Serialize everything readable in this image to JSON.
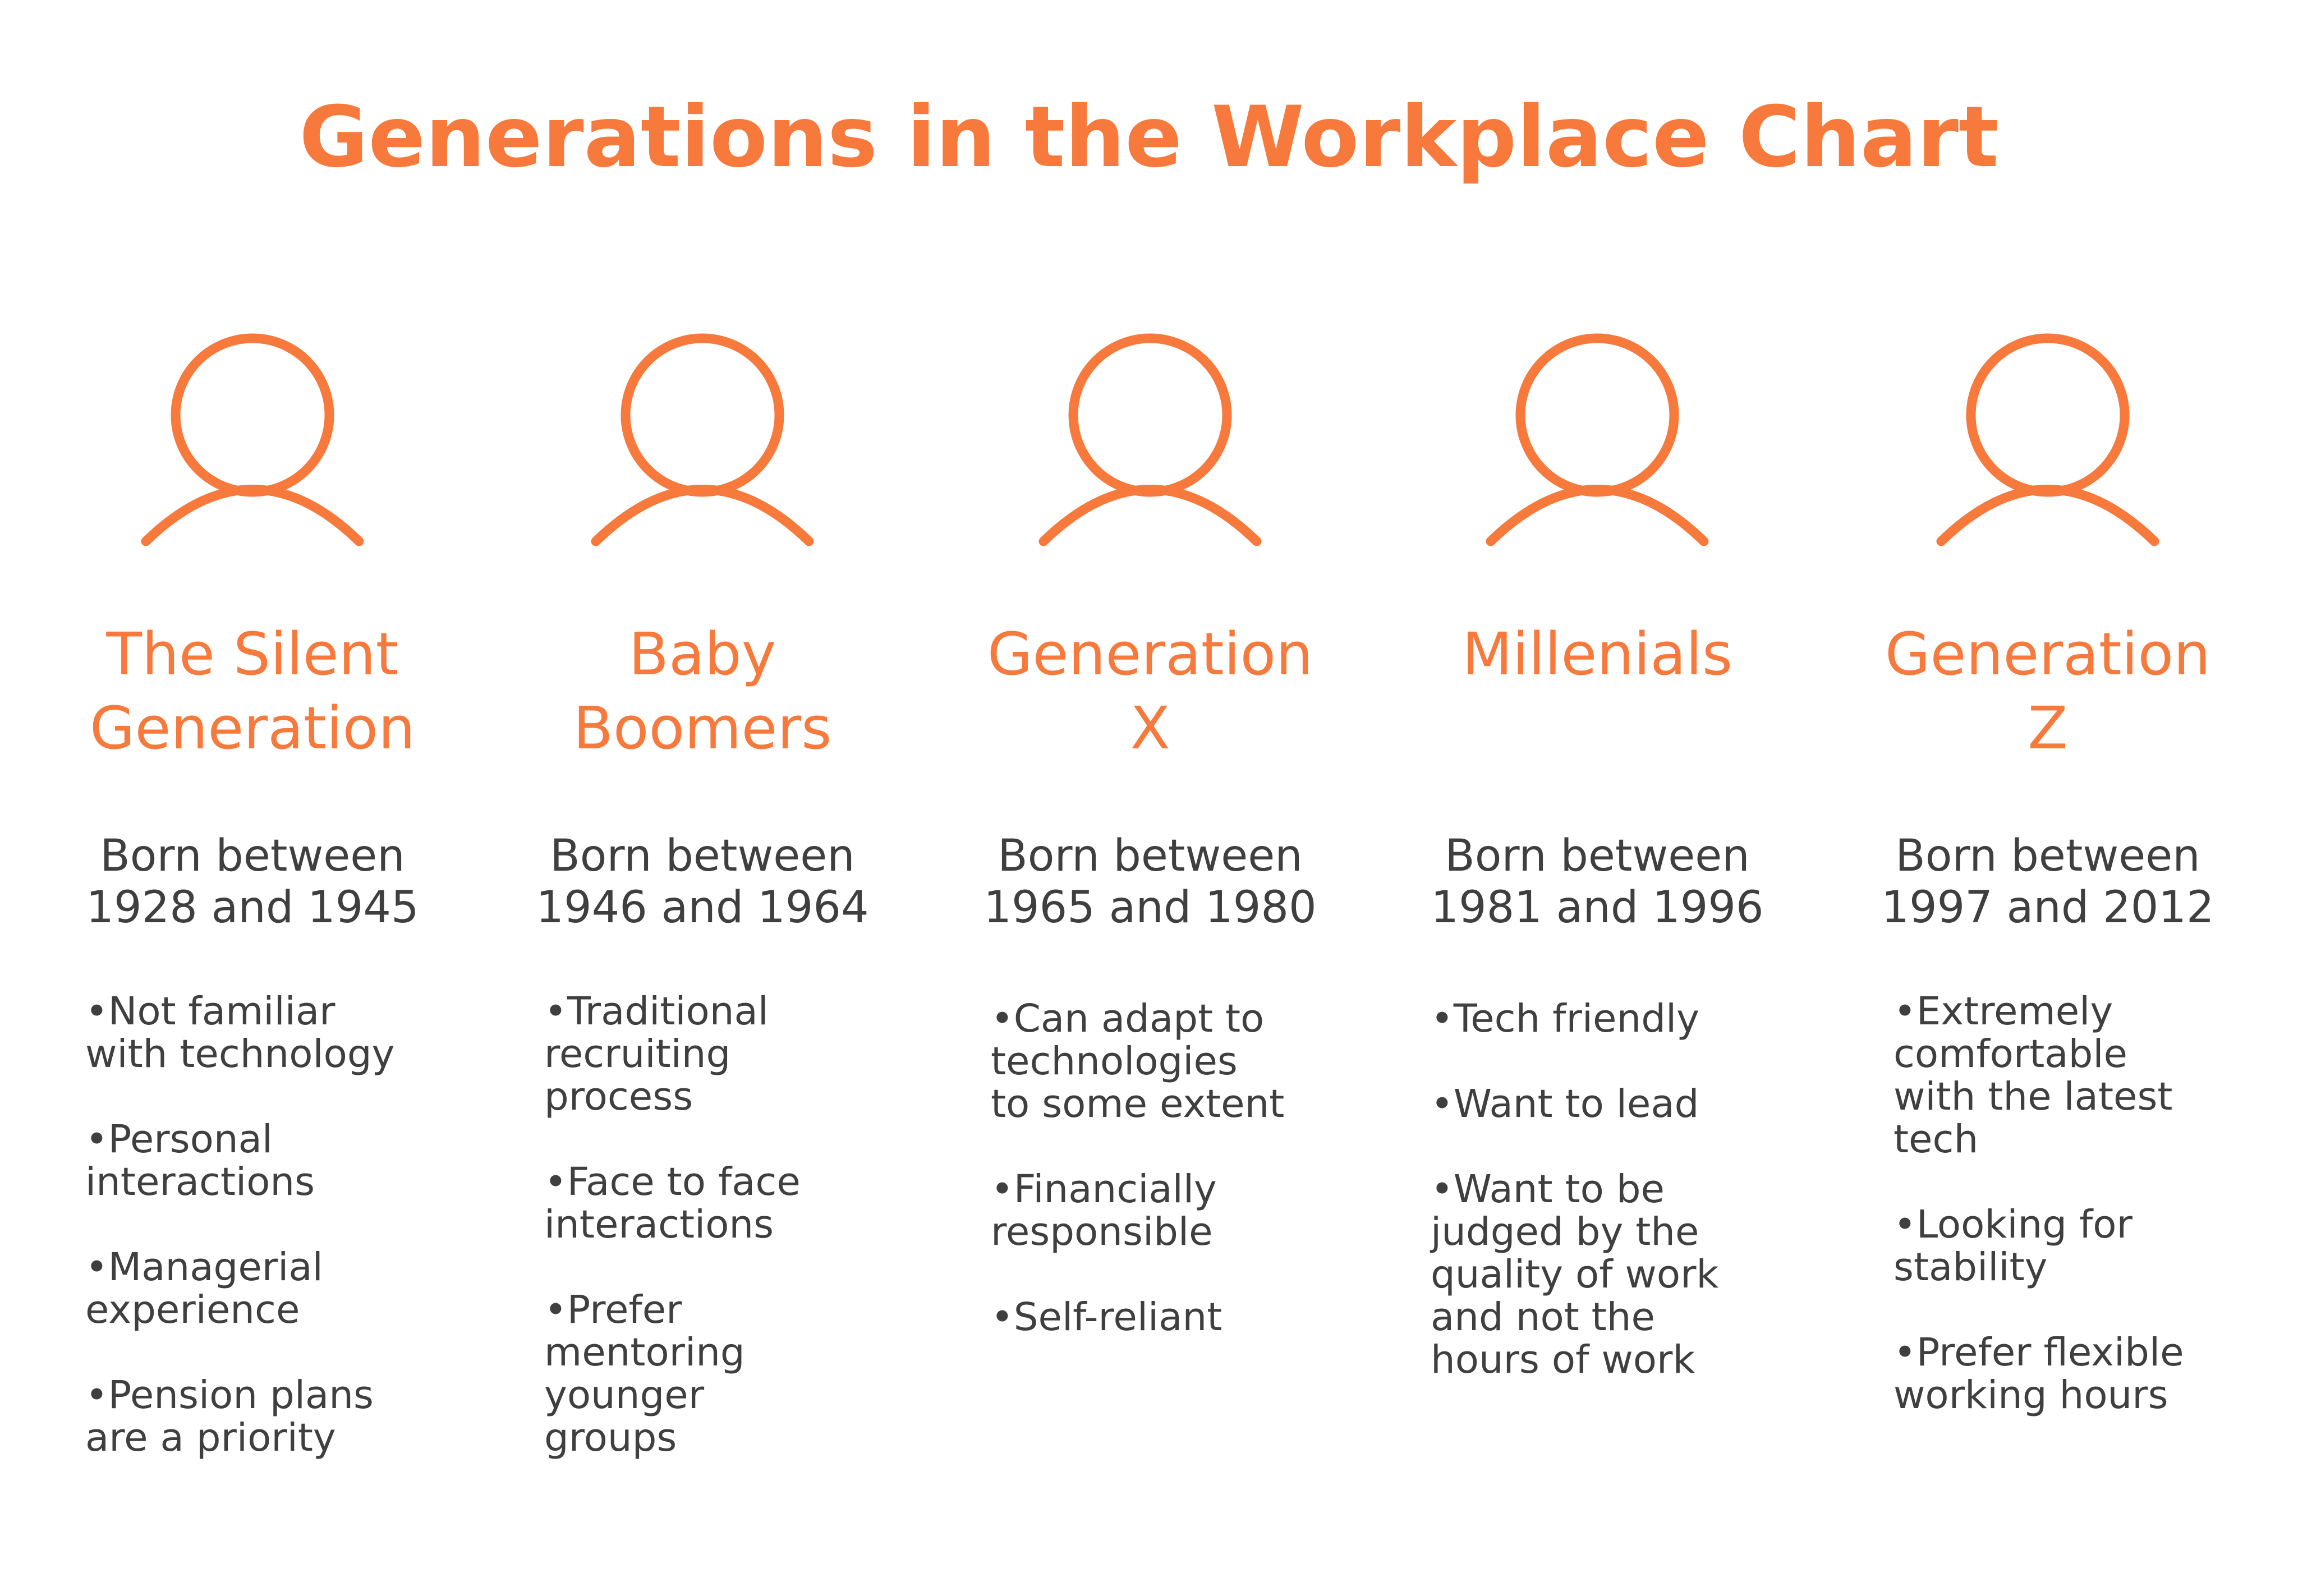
{
  "title": "Generations in the Workplace Chart",
  "accent_color": "#F7793B",
  "text_color": "#3F3F3F",
  "generations": [
    {
      "name": "The Silent\nGeneration",
      "born": "Born between\n1928 and 1945",
      "traits": [
        "Not familiar\nwith technology",
        "Personal\ninteractions",
        "Managerial\nexperience",
        "Pension plans\nare a priority"
      ]
    },
    {
      "name": "Baby\nBoomers",
      "born": "Born between\n1946 and 1964",
      "traits": [
        "Traditional\nrecruiting\nprocess",
        "Face to face\ninteractions",
        "Prefer\nmentoring\nyounger\ngroups"
      ]
    },
    {
      "name": "Generation\nX",
      "born": "Born between\n1965 and 1980",
      "traits": [
        "Can adapt to\ntechnologies\nto some extent",
        "Financially\nresponsible",
        "Self-reliant"
      ]
    },
    {
      "name": "Millenials",
      "born": "Born between\n1981 and 1996",
      "traits": [
        "Tech friendly",
        "Want to lead",
        "Want to be\njudged by the\nquality of work\nand not the\nhours of work"
      ]
    },
    {
      "name": "Generation\nZ",
      "born": "Born between\n1997 and 2012",
      "traits": [
        "Extremely\ncomfortable\nwith the latest\ntech",
        "Looking for\nstability",
        "Prefer flexible\nworking hours"
      ]
    }
  ]
}
